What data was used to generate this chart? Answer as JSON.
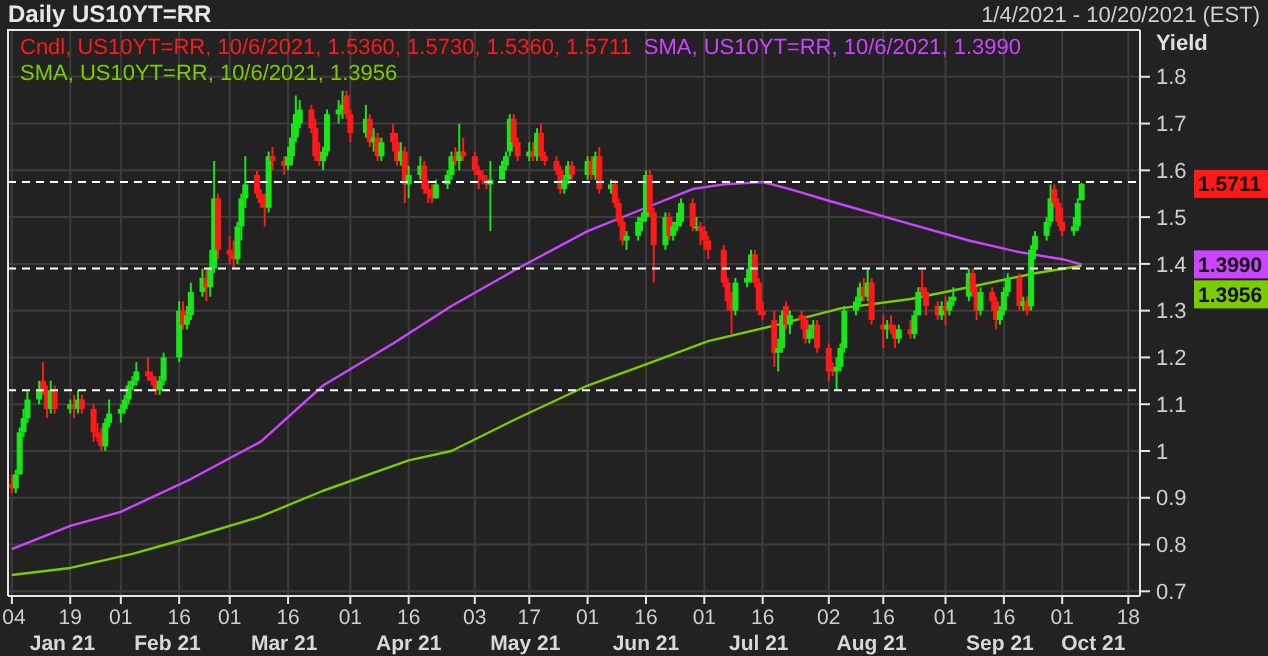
{
  "chart_data": {
    "type": "candlestick",
    "title": "Daily US10YT=RR",
    "subtitle": "1/4/2021 - 10/20/2021 (EST)",
    "ylabel": "Yield",
    "xlim": [
      "2021-01-03",
      "2021-10-21"
    ],
    "xticks": [
      {
        "value": "2021-01-04",
        "label": "04"
      },
      {
        "value": "2021-01-19",
        "label": "19"
      },
      {
        "value": "2021-02-01",
        "label": "01"
      },
      {
        "value": "2021-02-16",
        "label": "16"
      },
      {
        "value": "2021-03-01",
        "label": "01"
      },
      {
        "value": "2021-03-16",
        "label": "16"
      },
      {
        "value": "2021-04-01",
        "label": "01"
      },
      {
        "value": "2021-04-16",
        "label": "16"
      },
      {
        "value": "2021-05-03",
        "label": "03"
      },
      {
        "value": "2021-05-17",
        "label": "17"
      },
      {
        "value": "2021-06-01",
        "label": "01"
      },
      {
        "value": "2021-06-16",
        "label": "16"
      },
      {
        "value": "2021-07-01",
        "label": "01"
      },
      {
        "value": "2021-07-16",
        "label": "16"
      },
      {
        "value": "2021-08-02",
        "label": "02"
      },
      {
        "value": "2021-08-16",
        "label": "16"
      },
      {
        "value": "2021-09-01",
        "label": "01"
      },
      {
        "value": "2021-09-16",
        "label": "16"
      },
      {
        "value": "2021-10-01",
        "label": "01"
      },
      {
        "value": "2021-10-18",
        "label": "18"
      }
    ],
    "x2ticks": [
      {
        "value": "2021-01-17",
        "label": "Jan 21"
      },
      {
        "value": "2021-02-13",
        "label": "Feb 21"
      },
      {
        "value": "2021-03-15",
        "label": "Mar 21"
      },
      {
        "value": "2021-04-16",
        "label": "Apr 21"
      },
      {
        "value": "2021-05-16",
        "label": "May 21"
      },
      {
        "value": "2021-06-16",
        "label": "Jun 21"
      },
      {
        "value": "2021-07-15",
        "label": "Jul 21"
      },
      {
        "value": "2021-08-13",
        "label": "Aug 21"
      },
      {
        "value": "2021-09-15",
        "label": "Sep 21"
      },
      {
        "value": "2021-10-09",
        "label": "Oct 21"
      }
    ],
    "ylim": [
      0.69,
      1.9
    ],
    "yticks": [
      0.7,
      0.8,
      0.9,
      1,
      1.1,
      1.2,
      1.3,
      1.4,
      1.5,
      1.6,
      1.7,
      1.8
    ],
    "grid": true,
    "legend": "top left",
    "series": [
      {
        "name": "Cndl, US10YT=RR, 10/6/2021, 1.5360, 1.5730, 1.5360, 1.5711",
        "color": "#ff1a1a",
        "colors": [
          "#ff1a1a",
          "#19e619",
          "#19e619",
          "#19e619",
          "#19e619",
          "#19e619",
          "#ff1a1a",
          "#ff1a1a",
          "#19e619",
          "#ff1a1a",
          "#19e619",
          "#ff1a1a",
          "#19e619",
          "#ff1a1a",
          "#ff1a1a",
          "#ff1a1a",
          "#ff1a1a",
          "#19e619",
          "#19e619",
          "#19e619",
          "#19e619",
          "#19e619",
          "#19e619",
          "#19e619",
          "#ff1a1a",
          "#ff1a1a",
          "#ff1a1a",
          "#19e619",
          "#19e619",
          "#19e619",
          "#ff1a1a",
          "#19e619",
          "#19e619",
          "#19e619",
          "#ff1a1a",
          "#19e619",
          "#19e619",
          "#ff1a1a",
          "#ff1a1a",
          "#ff1a1a",
          "#19e619",
          "#19e619",
          "#19e619",
          "#ff1a1a",
          "#ff1a1a",
          "#ff1a1a",
          "#19e619",
          "#ff1a1a",
          "#ff1a1a",
          "#19e619",
          "#19e619",
          "#19e619",
          "#19e619",
          "#ff1a1a",
          "#ff1a1a",
          "#ff1a1a",
          "#19e619",
          "#19e619",
          "#19e619",
          "#19e619",
          "#ff1a1a",
          "#ff1a1a",
          "#19e619",
          "#ff1a1a",
          "#19e619",
          "#ff1a1a",
          "#19e619",
          "#ff1a1a",
          "#ff1a1a",
          "#19e619",
          "#ff1a1a",
          "#19e619",
          "#19e619",
          "#ff1a1a",
          "#ff1a1a",
          "#ff1a1a",
          "#19e619",
          "#19e619",
          "#19e619",
          "#ff1a1a",
          "#19e619",
          "#ff1a1a",
          "#ff1a1a",
          "#ff1a1a",
          "#ff1a1a",
          "#ff1a1a",
          "#19e619",
          "#19e619",
          "#19e619",
          "#19e619",
          "#ff1a1a",
          "#ff1a1a",
          "#19e619",
          "#ff1a1a",
          "#19e619",
          "#ff1a1a",
          "#ff1a1a",
          "#ff1a1a",
          "#ff1a1a",
          "#19e619",
          "#19e619",
          "#ff1a1a",
          "#19e619",
          "#ff1a1a",
          "#19e619",
          "#ff1a1a",
          "#19e619",
          "#ff1a1a",
          "#ff1a1a",
          "#ff1a1a",
          "#19e619",
          "#19e619",
          "#19e619",
          "#19e619",
          "#ff1a1a",
          "#ff1a1a",
          "#19e619",
          "#ff1a1a",
          "#19e619",
          "#19e619",
          "#19e619",
          "#ff1a1a",
          "#19e619",
          "#ff1a1a",
          "#ff1a1a",
          "#ff1a1a",
          "#ff1a1a",
          "#ff1a1a",
          "#ff1a1a",
          "#19e619",
          "#19e619",
          "#19e619",
          "#ff1a1a",
          "#ff1a1a",
          "#ff1a1a",
          "#ff1a1a",
          "#19e619",
          "#19e619",
          "#ff1a1a",
          "#19e619",
          "#ff1a1a",
          "#ff1a1a",
          "#19e619",
          "#19e619",
          "#ff1a1a",
          "#ff1a1a",
          "#ff1a1a",
          "#19e619",
          "#19e619",
          "#19e619",
          "#19e619",
          "#19e619",
          "#ff1a1a",
          "#19e619",
          "#ff1a1a",
          "#ff1a1a",
          "#19e619",
          "#ff1a1a",
          "#ff1a1a",
          "#19e619",
          "#ff1a1a",
          "#19e619",
          "#19e619",
          "#ff1a1a",
          "#ff1a1a",
          "#ff1a1a",
          "#19e619",
          "#ff1a1a",
          "#19e619",
          "#19e619",
          "#19e619",
          "#ff1a1a",
          "#ff1a1a",
          "#19e619",
          "#ff1a1a",
          "#ff1a1a",
          "#19e619",
          "#19e619",
          "#19e619",
          "#ff1a1a",
          "#19e619",
          "#ff1a1a",
          "#19e619",
          "#19e619",
          "#19e619",
          "#19e619",
          "#ff1a1a",
          "#ff1a1a",
          "#ff1a1a",
          "#19e619",
          "#19e619",
          "#19e619"
        ],
        "x": [
          "2021-01-04",
          "2021-01-05",
          "2021-01-06",
          "2021-01-07",
          "2021-01-08",
          "2021-01-11",
          "2021-01-12",
          "2021-01-13",
          "2021-01-14",
          "2021-01-15",
          "2021-01-19",
          "2021-01-20",
          "2021-01-21",
          "2021-01-22",
          "2021-01-25",
          "2021-01-26",
          "2021-01-27",
          "2021-01-28",
          "2021-01-29",
          "2021-02-01",
          "2021-02-02",
          "2021-02-03",
          "2021-02-04",
          "2021-02-05",
          "2021-02-08",
          "2021-02-09",
          "2021-02-10",
          "2021-02-11",
          "2021-02-12",
          "2021-02-16",
          "2021-02-17",
          "2021-02-18",
          "2021-02-19",
          "2021-02-22",
          "2021-02-23",
          "2021-02-24",
          "2021-02-25",
          "2021-02-26",
          "2021-03-01",
          "2021-03-02",
          "2021-03-03",
          "2021-03-04",
          "2021-03-05",
          "2021-03-08",
          "2021-03-09",
          "2021-03-10",
          "2021-03-11",
          "2021-03-12",
          "2021-03-15",
          "2021-03-16",
          "2021-03-17",
          "2021-03-18",
          "2021-03-19",
          "2021-03-22",
          "2021-03-23",
          "2021-03-24",
          "2021-03-25",
          "2021-03-26",
          "2021-03-29",
          "2021-03-30",
          "2021-03-31",
          "2021-04-01",
          "2021-04-05",
          "2021-04-06",
          "2021-04-07",
          "2021-04-08",
          "2021-04-09",
          "2021-04-12",
          "2021-04-13",
          "2021-04-14",
          "2021-04-15",
          "2021-04-16",
          "2021-04-19",
          "2021-04-20",
          "2021-04-21",
          "2021-04-22",
          "2021-04-23",
          "2021-04-26",
          "2021-04-27",
          "2021-04-28",
          "2021-04-29",
          "2021-04-30",
          "2021-05-03",
          "2021-05-04",
          "2021-05-05",
          "2021-05-06",
          "2021-05-07",
          "2021-05-10",
          "2021-05-11",
          "2021-05-12",
          "2021-05-13",
          "2021-05-14",
          "2021-05-17",
          "2021-05-18",
          "2021-05-19",
          "2021-05-20",
          "2021-05-21",
          "2021-05-24",
          "2021-05-25",
          "2021-05-26",
          "2021-05-27",
          "2021-05-28",
          "2021-06-01",
          "2021-06-02",
          "2021-06-03",
          "2021-06-04",
          "2021-06-07",
          "2021-06-08",
          "2021-06-09",
          "2021-06-10",
          "2021-06-11",
          "2021-06-14",
          "2021-06-15",
          "2021-06-16",
          "2021-06-17",
          "2021-06-18",
          "2021-06-21",
          "2021-06-22",
          "2021-06-23",
          "2021-06-24",
          "2021-06-25",
          "2021-06-28",
          "2021-06-29",
          "2021-06-30",
          "2021-07-01",
          "2021-07-02",
          "2021-07-06",
          "2021-07-07",
          "2021-07-08",
          "2021-07-09",
          "2021-07-12",
          "2021-07-13",
          "2021-07-14",
          "2021-07-15",
          "2021-07-16",
          "2021-07-19",
          "2021-07-20",
          "2021-07-21",
          "2021-07-22",
          "2021-07-23",
          "2021-07-26",
          "2021-07-27",
          "2021-07-28",
          "2021-07-29",
          "2021-07-30",
          "2021-08-02",
          "2021-08-03",
          "2021-08-04",
          "2021-08-05",
          "2021-08-06",
          "2021-08-09",
          "2021-08-10",
          "2021-08-11",
          "2021-08-12",
          "2021-08-13",
          "2021-08-16",
          "2021-08-17",
          "2021-08-18",
          "2021-08-19",
          "2021-08-20",
          "2021-08-23",
          "2021-08-24",
          "2021-08-25",
          "2021-08-26",
          "2021-08-27",
          "2021-08-30",
          "2021-08-31",
          "2021-09-01",
          "2021-09-02",
          "2021-09-03",
          "2021-09-07",
          "2021-09-08",
          "2021-09-09",
          "2021-09-10",
          "2021-09-13",
          "2021-09-14",
          "2021-09-15",
          "2021-09-16",
          "2021-09-17",
          "2021-09-20",
          "2021-09-21",
          "2021-09-22",
          "2021-09-23",
          "2021-09-24",
          "2021-09-27",
          "2021-09-28",
          "2021-09-29",
          "2021-09-30",
          "2021-10-01",
          "2021-10-04",
          "2021-10-05",
          "2021-10-06"
        ],
        "ohlc": [
          [
            0.93,
            0.95,
            0.91,
            0.92
          ],
          [
            0.92,
            0.96,
            0.91,
            0.95
          ],
          [
            0.95,
            1.05,
            0.95,
            1.04
          ],
          [
            1.04,
            1.09,
            1.03,
            1.07
          ],
          [
            1.07,
            1.13,
            1.06,
            1.11
          ],
          [
            1.11,
            1.15,
            1.1,
            1.13
          ],
          [
            1.15,
            1.19,
            1.12,
            1.13
          ],
          [
            1.13,
            1.14,
            1.07,
            1.09
          ],
          [
            1.09,
            1.15,
            1.08,
            1.13
          ],
          [
            1.13,
            1.14,
            1.08,
            1.09
          ],
          [
            1.09,
            1.11,
            1.08,
            1.1
          ],
          [
            1.1,
            1.12,
            1.07,
            1.09
          ],
          [
            1.09,
            1.13,
            1.08,
            1.11
          ],
          [
            1.11,
            1.12,
            1.08,
            1.09
          ],
          [
            1.09,
            1.1,
            1.02,
            1.04
          ],
          [
            1.04,
            1.06,
            1.02,
            1.03
          ],
          [
            1.03,
            1.05,
            1.0,
            1.01
          ],
          [
            1.01,
            1.07,
            1.0,
            1.06
          ],
          [
            1.06,
            1.11,
            1.05,
            1.08
          ],
          [
            1.08,
            1.1,
            1.06,
            1.09
          ],
          [
            1.09,
            1.12,
            1.08,
            1.11
          ],
          [
            1.11,
            1.15,
            1.1,
            1.14
          ],
          [
            1.14,
            1.16,
            1.13,
            1.15
          ],
          [
            1.15,
            1.19,
            1.14,
            1.17
          ],
          [
            1.17,
            1.2,
            1.15,
            1.16
          ],
          [
            1.16,
            1.17,
            1.14,
            1.15
          ],
          [
            1.15,
            1.16,
            1.12,
            1.13
          ],
          [
            1.13,
            1.16,
            1.12,
            1.15
          ],
          [
            1.15,
            1.21,
            1.14,
            1.2
          ],
          [
            1.2,
            1.32,
            1.19,
            1.3
          ],
          [
            1.3,
            1.32,
            1.26,
            1.27
          ],
          [
            1.27,
            1.31,
            1.26,
            1.29
          ],
          [
            1.29,
            1.36,
            1.28,
            1.34
          ],
          [
            1.34,
            1.39,
            1.33,
            1.37
          ],
          [
            1.37,
            1.39,
            1.32,
            1.35
          ],
          [
            1.35,
            1.43,
            1.33,
            1.39
          ],
          [
            1.39,
            1.62,
            1.38,
            1.54
          ],
          [
            1.54,
            1.55,
            1.41,
            1.43
          ],
          [
            1.43,
            1.46,
            1.4,
            1.42
          ],
          [
            1.42,
            1.45,
            1.39,
            1.41
          ],
          [
            1.41,
            1.49,
            1.4,
            1.48
          ],
          [
            1.48,
            1.55,
            1.45,
            1.54
          ],
          [
            1.54,
            1.63,
            1.52,
            1.57
          ],
          [
            1.59,
            1.6,
            1.54,
            1.55
          ],
          [
            1.55,
            1.56,
            1.52,
            1.53
          ],
          [
            1.53,
            1.55,
            1.48,
            1.52
          ],
          [
            1.52,
            1.64,
            1.51,
            1.63
          ],
          [
            1.63,
            1.65,
            1.6,
            1.62
          ],
          [
            1.62,
            1.63,
            1.59,
            1.61
          ],
          [
            1.61,
            1.65,
            1.6,
            1.63
          ],
          [
            1.63,
            1.7,
            1.61,
            1.67
          ],
          [
            1.67,
            1.76,
            1.66,
            1.72
          ],
          [
            1.7,
            1.75,
            1.69,
            1.73
          ],
          [
            1.73,
            1.74,
            1.68,
            1.69
          ],
          [
            1.69,
            1.71,
            1.62,
            1.63
          ],
          [
            1.63,
            1.66,
            1.61,
            1.62
          ],
          [
            1.62,
            1.65,
            1.6,
            1.64
          ],
          [
            1.64,
            1.73,
            1.63,
            1.72
          ],
          [
            1.72,
            1.75,
            1.7,
            1.73
          ],
          [
            1.73,
            1.77,
            1.71,
            1.74
          ],
          [
            1.76,
            1.77,
            1.71,
            1.72
          ],
          [
            1.72,
            1.73,
            1.66,
            1.68
          ],
          [
            1.68,
            1.74,
            1.67,
            1.71
          ],
          [
            1.71,
            1.72,
            1.65,
            1.66
          ],
          [
            1.66,
            1.69,
            1.64,
            1.67
          ],
          [
            1.67,
            1.68,
            1.62,
            1.63
          ],
          [
            1.63,
            1.67,
            1.62,
            1.66
          ],
          [
            1.68,
            1.7,
            1.64,
            1.66
          ],
          [
            1.66,
            1.68,
            1.61,
            1.62
          ],
          [
            1.62,
            1.66,
            1.61,
            1.64
          ],
          [
            1.64,
            1.65,
            1.53,
            1.57
          ],
          [
            1.57,
            1.61,
            1.54,
            1.59
          ],
          [
            1.59,
            1.63,
            1.58,
            1.61
          ],
          [
            1.61,
            1.62,
            1.55,
            1.56
          ],
          [
            1.56,
            1.58,
            1.53,
            1.55
          ],
          [
            1.56,
            1.57,
            1.53,
            1.54
          ],
          [
            1.54,
            1.58,
            1.54,
            1.57
          ],
          [
            1.57,
            1.6,
            1.56,
            1.59
          ],
          [
            1.59,
            1.64,
            1.58,
            1.63
          ],
          [
            1.63,
            1.65,
            1.61,
            1.62
          ],
          [
            1.62,
            1.7,
            1.6,
            1.64
          ],
          [
            1.64,
            1.67,
            1.62,
            1.63
          ],
          [
            1.63,
            1.64,
            1.59,
            1.6
          ],
          [
            1.6,
            1.61,
            1.56,
            1.59
          ],
          [
            1.59,
            1.6,
            1.57,
            1.58
          ],
          [
            1.58,
            1.59,
            1.56,
            1.57
          ],
          [
            1.57,
            1.62,
            1.47,
            1.58
          ],
          [
            1.58,
            1.62,
            1.58,
            1.61
          ],
          [
            1.61,
            1.64,
            1.6,
            1.63
          ],
          [
            1.64,
            1.72,
            1.63,
            1.71
          ],
          [
            1.71,
            1.72,
            1.65,
            1.66
          ],
          [
            1.66,
            1.67,
            1.62,
            1.63
          ],
          [
            1.63,
            1.66,
            1.62,
            1.64
          ],
          [
            1.64,
            1.66,
            1.62,
            1.63
          ],
          [
            1.63,
            1.69,
            1.62,
            1.68
          ],
          [
            1.68,
            1.7,
            1.62,
            1.63
          ],
          [
            1.63,
            1.64,
            1.61,
            1.62
          ],
          [
            1.62,
            1.63,
            1.59,
            1.6
          ],
          [
            1.6,
            1.61,
            1.55,
            1.56
          ],
          [
            1.56,
            1.59,
            1.55,
            1.58
          ],
          [
            1.58,
            1.62,
            1.57,
            1.61
          ],
          [
            1.61,
            1.62,
            1.58,
            1.59
          ],
          [
            1.59,
            1.63,
            1.58,
            1.62
          ],
          [
            1.62,
            1.63,
            1.58,
            1.59
          ],
          [
            1.59,
            1.64,
            1.58,
            1.63
          ],
          [
            1.63,
            1.65,
            1.55,
            1.56
          ],
          [
            1.56,
            1.58,
            1.55,
            1.57
          ],
          [
            1.57,
            1.58,
            1.52,
            1.53
          ],
          [
            1.53,
            1.54,
            1.48,
            1.49
          ],
          [
            1.49,
            1.5,
            1.44,
            1.45
          ],
          [
            1.45,
            1.47,
            1.43,
            1.46
          ],
          [
            1.46,
            1.5,
            1.45,
            1.49
          ],
          [
            1.49,
            1.51,
            1.47,
            1.5
          ],
          [
            1.5,
            1.6,
            1.49,
            1.59
          ],
          [
            1.59,
            1.6,
            1.5,
            1.51
          ],
          [
            1.51,
            1.52,
            1.36,
            1.44
          ],
          [
            1.44,
            1.51,
            1.43,
            1.5
          ],
          [
            1.5,
            1.51,
            1.45,
            1.46
          ],
          [
            1.46,
            1.49,
            1.45,
            1.48
          ],
          [
            1.48,
            1.51,
            1.47,
            1.49
          ],
          [
            1.49,
            1.54,
            1.48,
            1.53
          ],
          [
            1.53,
            1.54,
            1.47,
            1.48
          ],
          [
            1.48,
            1.5,
            1.47,
            1.48
          ],
          [
            1.48,
            1.49,
            1.44,
            1.47
          ],
          [
            1.47,
            1.48,
            1.43,
            1.45
          ],
          [
            1.45,
            1.46,
            1.41,
            1.43
          ],
          [
            1.43,
            1.44,
            1.35,
            1.36
          ],
          [
            1.36,
            1.37,
            1.3,
            1.32
          ],
          [
            1.32,
            1.34,
            1.25,
            1.3
          ],
          [
            1.3,
            1.37,
            1.29,
            1.36
          ],
          [
            1.36,
            1.39,
            1.35,
            1.37
          ],
          [
            1.37,
            1.43,
            1.36,
            1.42
          ],
          [
            1.42,
            1.43,
            1.35,
            1.36
          ],
          [
            1.36,
            1.37,
            1.29,
            1.3
          ],
          [
            1.3,
            1.32,
            1.28,
            1.29
          ],
          [
            1.28,
            1.3,
            1.18,
            1.21
          ],
          [
            1.21,
            1.24,
            1.17,
            1.22
          ],
          [
            1.22,
            1.3,
            1.21,
            1.29
          ],
          [
            1.31,
            1.32,
            1.26,
            1.27
          ],
          [
            1.27,
            1.3,
            1.25,
            1.29
          ],
          [
            1.29,
            1.3,
            1.26,
            1.28
          ],
          [
            1.28,
            1.29,
            1.23,
            1.24
          ],
          [
            1.24,
            1.27,
            1.23,
            1.26
          ],
          [
            1.26,
            1.28,
            1.24,
            1.27
          ],
          [
            1.27,
            1.28,
            1.21,
            1.22
          ],
          [
            1.22,
            1.23,
            1.15,
            1.17
          ],
          [
            1.18,
            1.19,
            1.16,
            1.17
          ],
          [
            1.17,
            1.2,
            1.13,
            1.18
          ],
          [
            1.18,
            1.23,
            1.17,
            1.22
          ],
          [
            1.22,
            1.31,
            1.21,
            1.3
          ],
          [
            1.3,
            1.33,
            1.29,
            1.32
          ],
          [
            1.32,
            1.36,
            1.31,
            1.35
          ],
          [
            1.35,
            1.37,
            1.32,
            1.33
          ],
          [
            1.33,
            1.39,
            1.32,
            1.36
          ],
          [
            1.36,
            1.37,
            1.27,
            1.28
          ],
          [
            1.27,
            1.29,
            1.22,
            1.26
          ],
          [
            1.26,
            1.28,
            1.24,
            1.27
          ],
          [
            1.27,
            1.29,
            1.25,
            1.26
          ],
          [
            1.26,
            1.27,
            1.22,
            1.24
          ],
          [
            1.24,
            1.27,
            1.23,
            1.26
          ],
          [
            1.26,
            1.28,
            1.24,
            1.25
          ],
          [
            1.25,
            1.3,
            1.24,
            1.29
          ],
          [
            1.29,
            1.35,
            1.29,
            1.34
          ],
          [
            1.35,
            1.39,
            1.33,
            1.34
          ],
          [
            1.34,
            1.35,
            1.29,
            1.31
          ],
          [
            1.31,
            1.32,
            1.28,
            1.29
          ],
          [
            1.29,
            1.32,
            1.28,
            1.31
          ],
          [
            1.31,
            1.33,
            1.27,
            1.3
          ],
          [
            1.3,
            1.33,
            1.29,
            1.32
          ],
          [
            1.32,
            1.35,
            1.31,
            1.33
          ],
          [
            1.33,
            1.39,
            1.32,
            1.38
          ],
          [
            1.38,
            1.39,
            1.33,
            1.34
          ],
          [
            1.34,
            1.35,
            1.28,
            1.3
          ],
          [
            1.3,
            1.35,
            1.29,
            1.34
          ],
          [
            1.34,
            1.35,
            1.3,
            1.32
          ],
          [
            1.32,
            1.33,
            1.26,
            1.28
          ],
          [
            1.28,
            1.31,
            1.27,
            1.3
          ],
          [
            1.3,
            1.35,
            1.29,
            1.34
          ],
          [
            1.34,
            1.38,
            1.33,
            1.37
          ],
          [
            1.37,
            1.38,
            1.3,
            1.31
          ],
          [
            1.31,
            1.33,
            1.3,
            1.32
          ],
          [
            1.32,
            1.33,
            1.29,
            1.3
          ],
          [
            1.31,
            1.44,
            1.3,
            1.43
          ],
          [
            1.43,
            1.47,
            1.41,
            1.46
          ],
          [
            1.46,
            1.5,
            1.45,
            1.49
          ],
          [
            1.49,
            1.57,
            1.48,
            1.54
          ],
          [
            1.56,
            1.57,
            1.52,
            1.53
          ],
          [
            1.53,
            1.54,
            1.48,
            1.49
          ],
          [
            1.49,
            1.52,
            1.46,
            1.47
          ],
          [
            1.47,
            1.5,
            1.46,
            1.48
          ],
          [
            1.48,
            1.54,
            1.47,
            1.53
          ],
          [
            1.536,
            1.573,
            1.536,
            1.5711
          ]
        ]
      },
      {
        "type": "line",
        "name": "SMA, US10YT=RR, 10/6/2021, 1.3990",
        "color": "#cc44ff",
        "x": [
          "2021-01-04",
          "2021-01-19",
          "2021-02-01",
          "2021-02-19",
          "2021-03-09",
          "2021-03-25",
          "2021-04-12",
          "2021-04-27",
          "2021-05-14",
          "2021-06-01",
          "2021-06-16",
          "2021-06-28",
          "2021-07-06",
          "2021-07-16",
          "2021-07-23",
          "2021-08-02",
          "2021-08-23",
          "2021-09-07",
          "2021-09-20",
          "2021-10-01",
          "2021-10-06"
        ],
        "values": [
          0.79,
          0.84,
          0.87,
          0.94,
          1.02,
          1.14,
          1.23,
          1.31,
          1.39,
          1.47,
          1.52,
          1.56,
          1.57,
          1.575,
          1.56,
          1.535,
          1.485,
          1.45,
          1.425,
          1.41,
          1.399
        ]
      },
      {
        "type": "line",
        "name": "SMA, US10YT=RR, 10/6/2021, 1.3956",
        "color": "#7acc00",
        "x": [
          "2021-01-04",
          "2021-01-19",
          "2021-02-04",
          "2021-02-19",
          "2021-03-09",
          "2021-03-25",
          "2021-04-16",
          "2021-04-27",
          "2021-05-14",
          "2021-06-01",
          "2021-06-16",
          "2021-07-02",
          "2021-07-20",
          "2021-08-05",
          "2021-08-23",
          "2021-09-07",
          "2021-09-24",
          "2021-10-06"
        ],
        "values": [
          0.735,
          0.75,
          0.78,
          0.815,
          0.86,
          0.915,
          0.98,
          1.0,
          1.07,
          1.14,
          1.185,
          1.235,
          1.27,
          1.305,
          1.325,
          1.35,
          1.38,
          1.396
        ]
      }
    ],
    "ref_lines": [
      {
        "axis": "y",
        "value": 1.575,
        "color": "#ffffff",
        "line_style": "dashed"
      },
      {
        "axis": "y",
        "value": 1.39,
        "color": "#ffffff",
        "line_style": "dashed"
      },
      {
        "axis": "y",
        "value": 1.13,
        "color": "#ffffff",
        "line_style": "dashed"
      }
    ],
    "x2lim": [
      "2021-01-03",
      "2021-10-21"
    ],
    "annotations": [
      "1.5711",
      "1.3990",
      "1.3956"
    ]
  }
}
